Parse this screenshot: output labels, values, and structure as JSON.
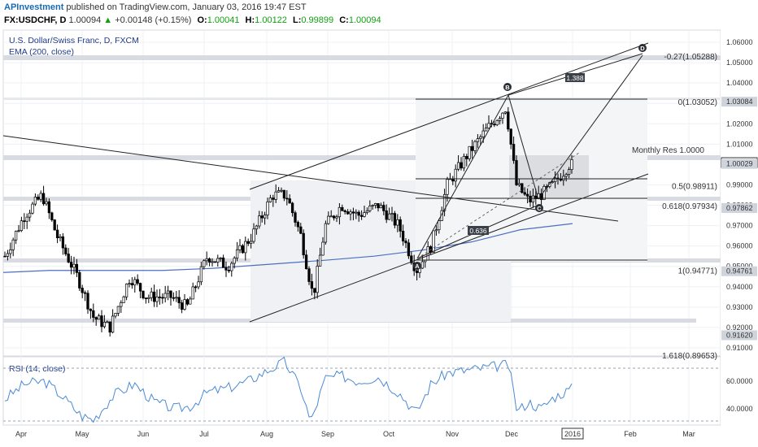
{
  "header": {
    "user": "APInvestment",
    "published": "published on TradingView.com, January 03, 2016 19:47 EST",
    "symbol": "FX:USDCHF, D",
    "last": "1.00094",
    "change_arrow": "▲",
    "change": "+0.00148 (+0.15%)",
    "o_label": "O:",
    "o_value": "1.00041",
    "h_label": "H:",
    "h_value": "1.00122",
    "l_label": "L:",
    "l_value": "0.99899",
    "c_label": "C:",
    "c_value": "1.00094"
  },
  "chart_data": {
    "type": "candlestick",
    "title": "U.S. Dollar/Swiss Franc, D, FXCM",
    "indicator": "EMA (200, close)",
    "rsi_label": "RSI (14, close)",
    "ylim": [
      0.905,
      1.065
    ],
    "y_ticks": [
      "1.06000",
      "1.05000",
      "1.04000",
      "1.03000",
      "1.02000",
      "1.01000",
      "1.00094",
      "0.99000",
      "0.98000",
      "0.97000",
      "0.96000",
      "0.95000",
      "0.94000",
      "0.93000",
      "0.92000",
      "0.91000"
    ],
    "y_tick_values": [
      1.06,
      1.05,
      1.04,
      1.03,
      1.02,
      1.01,
      1.00094,
      0.99,
      0.98,
      0.97,
      0.96,
      0.95,
      0.94,
      0.93,
      0.92,
      0.91
    ],
    "price_tags": [
      {
        "text": "1.03084",
        "value": 1.03084,
        "color": "#cfd3dc"
      },
      {
        "text": "1.00029",
        "value": 1.00029,
        "color": "#cfd3dc"
      },
      {
        "text": "0.97862",
        "value": 0.97862,
        "color": "#cfd3dc"
      },
      {
        "text": "0.94761",
        "value": 0.94761,
        "color": "#cfd3dc"
      },
      {
        "text": "0.91620",
        "value": 0.9162,
        "color": "#cfd3dc"
      }
    ],
    "x_labels": [
      "Apr",
      "May",
      "Jun",
      "Jul",
      "Aug",
      "Sep",
      "Oct",
      "Nov",
      "Dec",
      "2016",
      "Feb",
      "Mar"
    ],
    "x_label_positions": [
      26,
      101,
      176,
      251,
      328,
      403,
      478,
      556,
      629,
      704,
      775,
      847
    ],
    "fib_labels": [
      {
        "text": "-0.27(1.05288)",
        "value": 1.05288
      },
      {
        "text": "0(1.03052)",
        "value": 1.03052
      },
      {
        "text": "0.5(0.98911)",
        "value": 0.98911
      },
      {
        "text": "0.618(0.97934)",
        "value": 0.97934
      },
      {
        "text": "1(0.94771)",
        "value": 0.94771
      },
      {
        "text": "1.618(0.89653)",
        "value": 0.89653
      }
    ],
    "annotations": {
      "monthly_res": "Monthly Res 1.0000",
      "ratio_1": "1.388",
      "ratio_2": "0.636",
      "pt_a": "A",
      "pt_b": "B",
      "pt_c": "C",
      "pt_d": "D"
    },
    "rsi_ticks": [
      "60.0000",
      "40.0000"
    ],
    "rsi_tick_values": [
      60,
      40
    ],
    "colors": {
      "up": "#ffffff",
      "down": "#000000",
      "ema": "#4a6fc2",
      "rsi": "#4a8ad4",
      "grid": "#eef0f4"
    }
  }
}
